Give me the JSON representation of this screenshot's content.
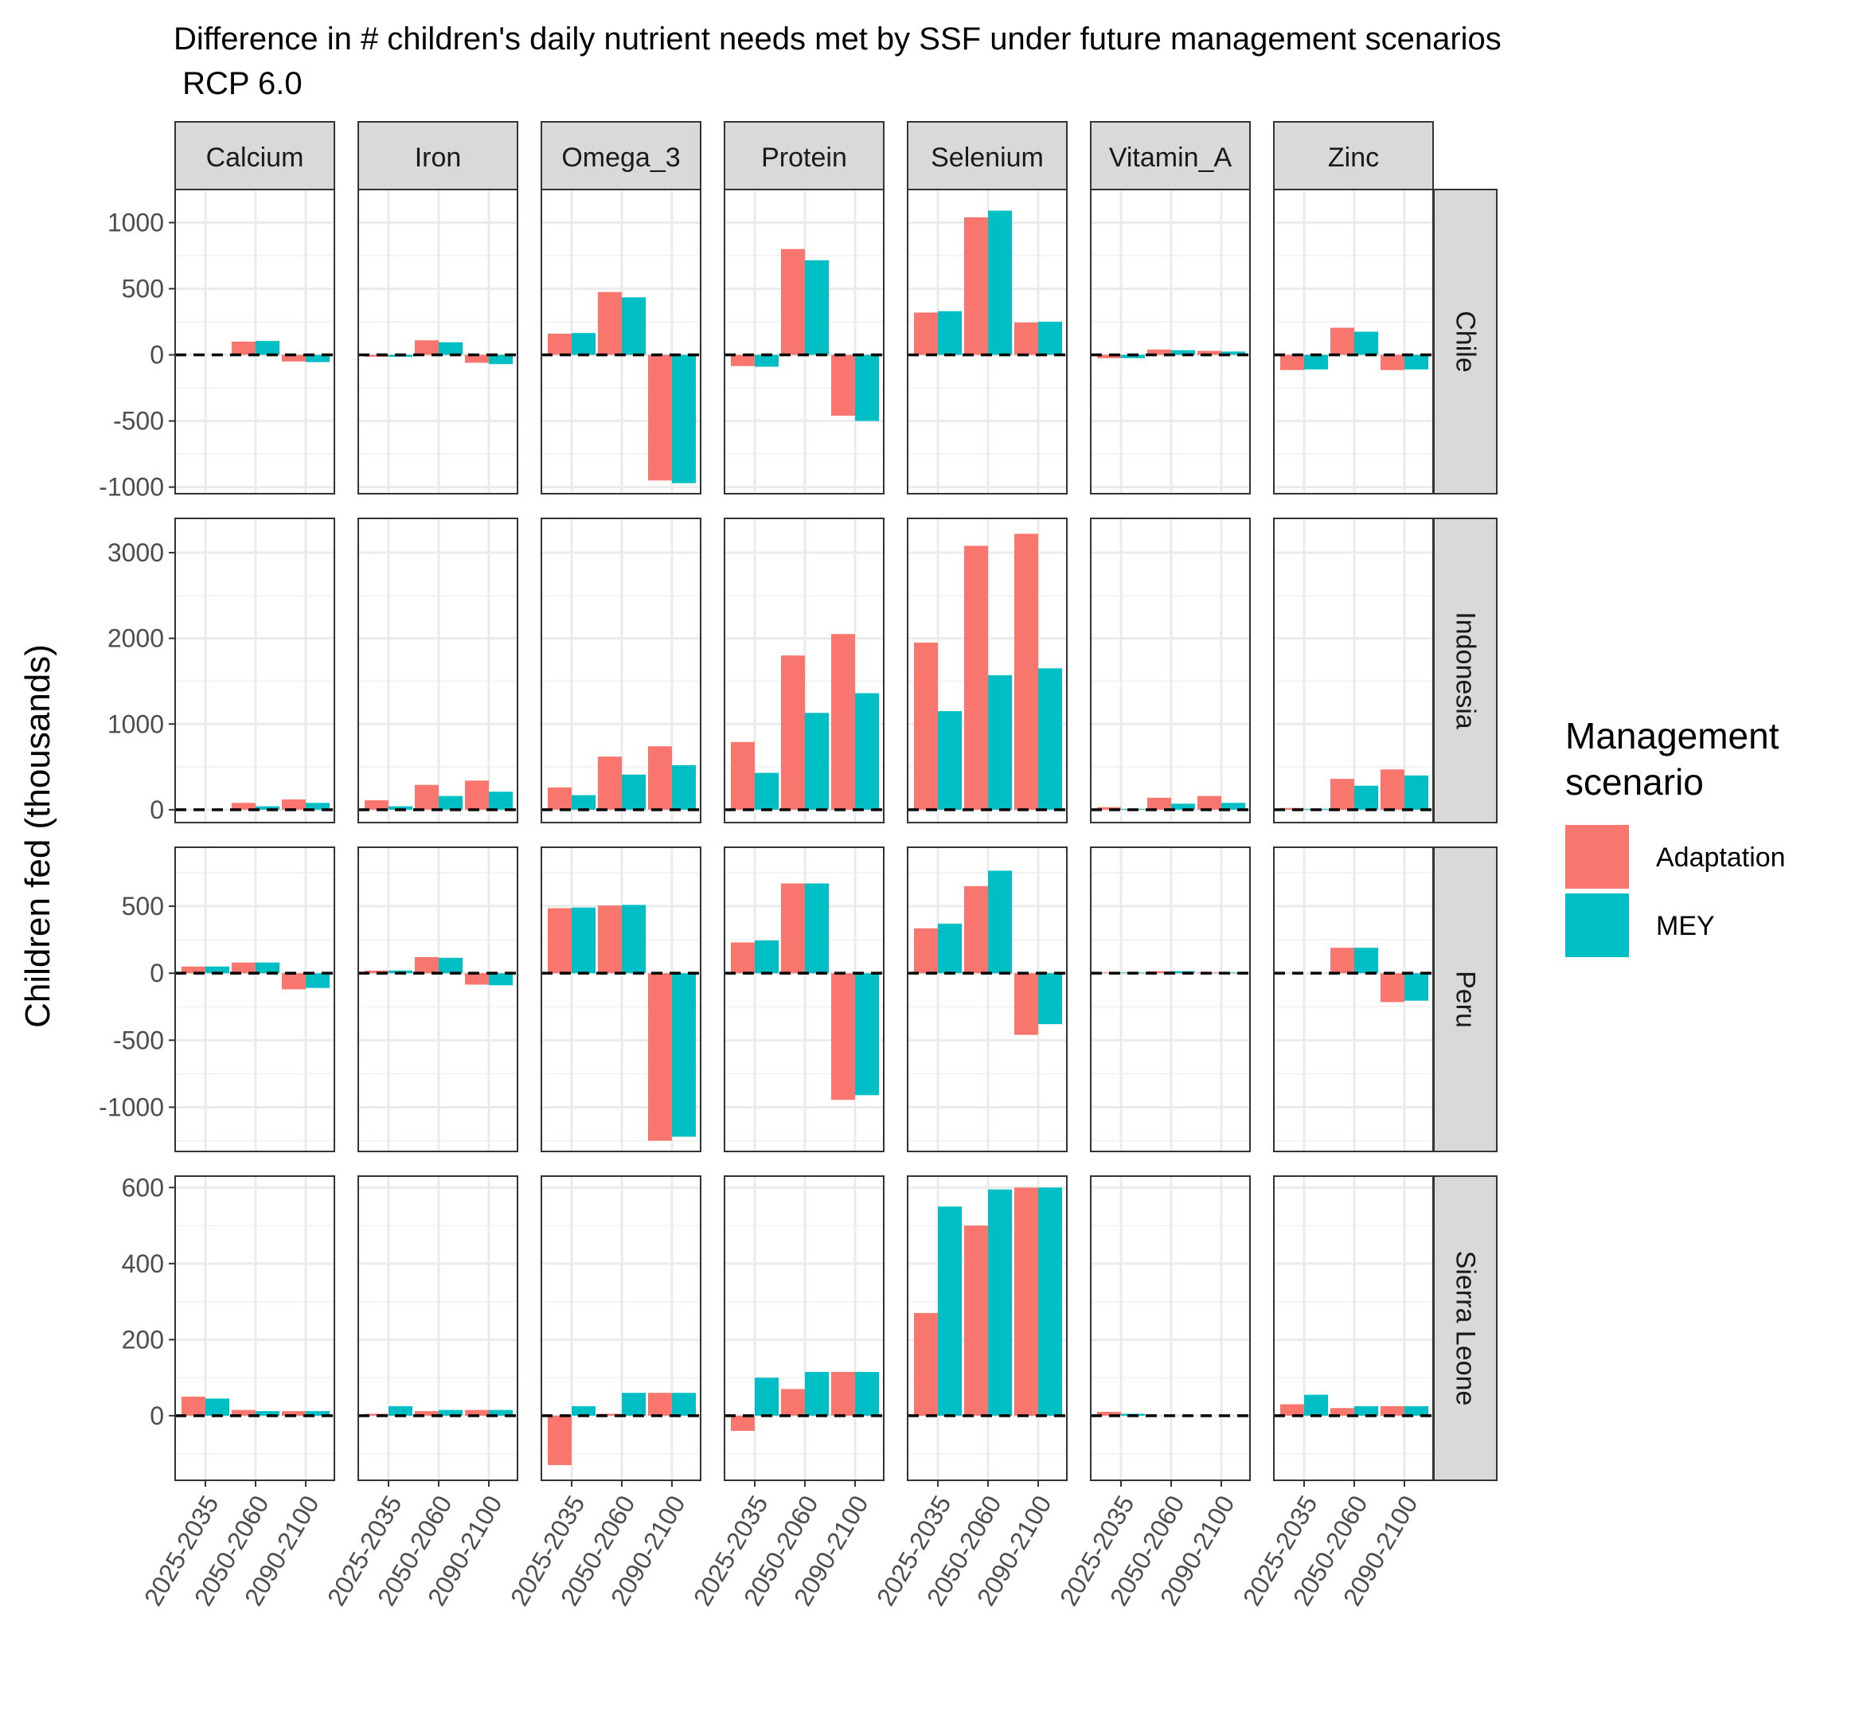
{
  "colors": {
    "Adaptation": "#F8766D",
    "MEY": "#00BFC4"
  },
  "legend": {
    "title_line1": "Management",
    "title_line2": "scenario",
    "items": [
      "Adaptation",
      "MEY"
    ]
  },
  "chart_data": {
    "type": "bar",
    "title_line1": "Difference in # children's daily nutrient needs met by SSF under future management scenarios",
    "title_line2": " RCP 6.0",
    "xlabel": "",
    "ylabel": "Children fed (thousands)",
    "nutrients": [
      "Calcium",
      "Iron",
      "Omega_3",
      "Protein",
      "Selenium",
      "Vitamin_A",
      "Zinc"
    ],
    "periods": [
      "2025-2035",
      "2050-2060",
      "2090-2100"
    ],
    "series_names": [
      "Adaptation",
      "MEY"
    ],
    "grid": true,
    "legend_position": "right",
    "reference_line": 0,
    "countries": [
      {
        "name": "Chile",
        "ylim": [
          -1050,
          1250
        ],
        "yticks": [
          -1000,
          -500,
          0,
          500,
          1000
        ],
        "tick_labels": [
          "-1000",
          "-500",
          "0",
          "500",
          "1000"
        ],
        "values": {
          "Calcium": [
            [
              0,
              0
            ],
            [
              100,
              105
            ],
            [
              -50,
              -55
            ]
          ],
          "Iron": [
            [
              -15,
              -15
            ],
            [
              110,
              95
            ],
            [
              -60,
              -70
            ]
          ],
          "Omega_3": [
            [
              160,
              165
            ],
            [
              475,
              435
            ],
            [
              -950,
              -970
            ]
          ],
          "Protein": [
            [
              -85,
              -90
            ],
            [
              800,
              715
            ],
            [
              -460,
              -500
            ]
          ],
          "Selenium": [
            [
              320,
              330
            ],
            [
              1040,
              1090
            ],
            [
              245,
              250
            ]
          ],
          "Vitamin_A": [
            [
              -25,
              -25
            ],
            [
              40,
              35
            ],
            [
              30,
              25
            ]
          ],
          "Zinc": [
            [
              -115,
              -110
            ],
            [
              205,
              175
            ],
            [
              -115,
              -110
            ]
          ]
        }
      },
      {
        "name": "Indonesia",
        "ylim": [
          -150,
          3400
        ],
        "yticks": [
          0,
          1000,
          2000,
          3000
        ],
        "tick_labels": [
          "0",
          "1000",
          "2000",
          "3000"
        ],
        "values": {
          "Calcium": [
            [
              0,
              0
            ],
            [
              80,
              40
            ],
            [
              120,
              80
            ]
          ],
          "Iron": [
            [
              110,
              40
            ],
            [
              290,
              160
            ],
            [
              340,
              210
            ]
          ],
          "Omega_3": [
            [
              260,
              170
            ],
            [
              620,
              410
            ],
            [
              740,
              520
            ]
          ],
          "Protein": [
            [
              790,
              430
            ],
            [
              1800,
              1130
            ],
            [
              2050,
              1360
            ]
          ],
          "Selenium": [
            [
              1950,
              1150
            ],
            [
              3080,
              1570
            ],
            [
              3220,
              1650
            ]
          ],
          "Vitamin_A": [
            [
              30,
              10
            ],
            [
              140,
              70
            ],
            [
              160,
              80
            ]
          ],
          "Zinc": [
            [
              20,
              10
            ],
            [
              360,
              280
            ],
            [
              470,
              400
            ]
          ]
        }
      },
      {
        "name": "Peru",
        "ylim": [
          -1330,
          940
        ],
        "yticks": [
          -1000,
          -500,
          0,
          500
        ],
        "tick_labels": [
          "-1000",
          "-500",
          "0",
          "500"
        ],
        "values": {
          "Calcium": [
            [
              50,
              50
            ],
            [
              80,
              80
            ],
            [
              -120,
              -110
            ]
          ],
          "Iron": [
            [
              20,
              20
            ],
            [
              120,
              115
            ],
            [
              -85,
              -90
            ]
          ],
          "Omega_3": [
            [
              485,
              490
            ],
            [
              505,
              510
            ],
            [
              -1250,
              -1220
            ]
          ],
          "Protein": [
            [
              230,
              245
            ],
            [
              670,
              670
            ],
            [
              -945,
              -910
            ]
          ],
          "Selenium": [
            [
              335,
              370
            ],
            [
              650,
              765
            ],
            [
              -460,
              -380
            ]
          ],
          "Vitamin_A": [
            [
              5,
              5
            ],
            [
              15,
              15
            ],
            [
              5,
              5
            ]
          ],
          "Zinc": [
            [
              0,
              0
            ],
            [
              190,
              190
            ],
            [
              -215,
              -205
            ]
          ]
        }
      },
      {
        "name": "Sierra Leone",
        "ylim": [
          -170,
          630
        ],
        "yticks": [
          0,
          200,
          400,
          600
        ],
        "tick_labels": [
          "0",
          "200",
          "400",
          "600"
        ],
        "values": {
          "Calcium": [
            [
              50,
              45
            ],
            [
              15,
              12
            ],
            [
              12,
              12
            ]
          ],
          "Iron": [
            [
              5,
              25
            ],
            [
              12,
              15
            ],
            [
              15,
              15
            ]
          ],
          "Omega_3": [
            [
              -130,
              25
            ],
            [
              5,
              60
            ],
            [
              60,
              60
            ]
          ],
          "Protein": [
            [
              -40,
              100
            ],
            [
              70,
              115
            ],
            [
              115,
              115
            ]
          ],
          "Selenium": [
            [
              270,
              550
            ],
            [
              500,
              595
            ],
            [
              600,
              600
            ]
          ],
          "Vitamin_A": [
            [
              10,
              5
            ],
            [
              0,
              0
            ],
            [
              0,
              0
            ]
          ],
          "Zinc": [
            [
              30,
              55
            ],
            [
              20,
              25
            ],
            [
              25,
              25
            ]
          ]
        }
      }
    ]
  }
}
